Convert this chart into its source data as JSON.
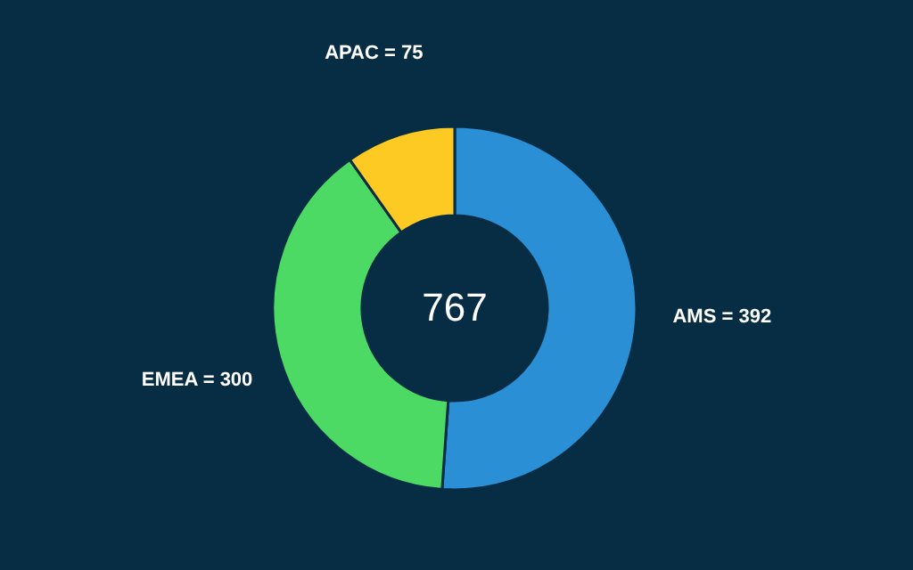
{
  "chart_data": {
    "type": "donut",
    "categories": [
      "AMS = 392",
      "EMEA = 300",
      "APAC = 75"
    ],
    "values": [
      392,
      300,
      75
    ],
    "colors": [
      "#2a8fd5",
      "#4cd964",
      "#fdca24"
    ],
    "annotations": [
      "767"
    ]
  }
}
